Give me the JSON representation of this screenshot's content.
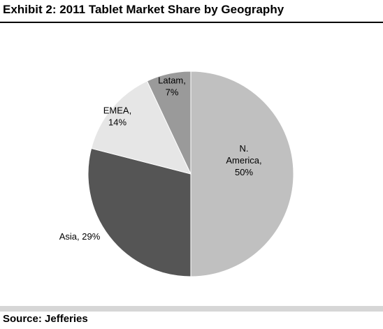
{
  "header": {
    "title": "Exhibit 2: 2011 Tablet Market Share by Geography"
  },
  "footer": {
    "source": "Source: Jefferies"
  },
  "chart_data": {
    "type": "pie",
    "title": "Exhibit 2: 2011 Tablet Market Share by Geography",
    "slices": [
      {
        "label_lines": [
          "N.",
          "America,",
          "50%"
        ],
        "value": 50,
        "color": "#c0c0c0"
      },
      {
        "label_lines": [
          "Asia, 29%"
        ],
        "value": 29,
        "color": "#555555"
      },
      {
        "label_lines": [
          "EMEA,",
          "14%"
        ],
        "value": 14,
        "color": "#e6e6e6"
      },
      {
        "label_lines": [
          "Latam,",
          "7%"
        ],
        "value": 7,
        "color": "#9a9a9a"
      }
    ],
    "legend": "none"
  }
}
